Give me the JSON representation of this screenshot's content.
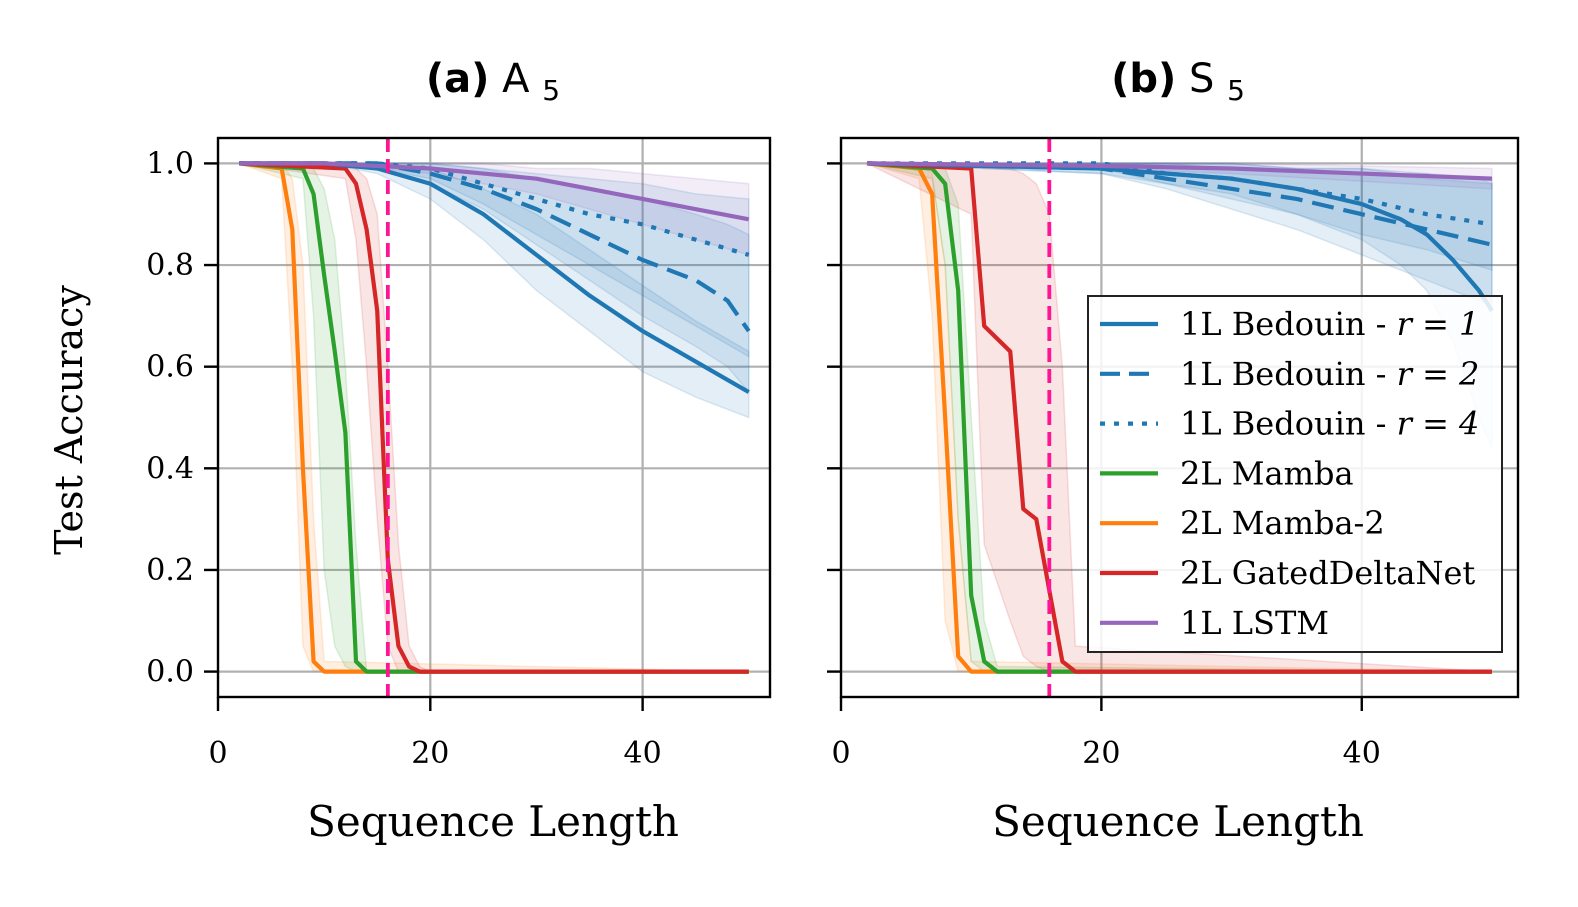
{
  "chart_data": {
    "type": "line",
    "shared_ylabel": "Test Accuracy",
    "reference_line": {
      "x": 16,
      "color": "#ff1493",
      "style": "dashed"
    },
    "legend": [
      {
        "label": "1L Bedouin - ",
        "label_math": "r = 1",
        "series_key": "bedouin_r1",
        "color": "#1f77b4",
        "dash": "solid"
      },
      {
        "label": "1L Bedouin - ",
        "label_math": "r = 2",
        "series_key": "bedouin_r2",
        "color": "#1f77b4",
        "dash": "dashed"
      },
      {
        "label": "1L Bedouin - ",
        "label_math": "r = 4",
        "series_key": "bedouin_r4",
        "color": "#1f77b4",
        "dash": "dotted"
      },
      {
        "label": "2L Mamba",
        "label_math": "",
        "series_key": "mamba",
        "color": "#2ca02c",
        "dash": "solid"
      },
      {
        "label": "2L Mamba-2",
        "label_math": "",
        "series_key": "mamba2",
        "color": "#ff7f0e",
        "dash": "solid"
      },
      {
        "label": "2L GatedDeltaNet",
        "label_math": "",
        "series_key": "gdn",
        "color": "#d62728",
        "dash": "solid"
      },
      {
        "label": "1L LSTM",
        "label_math": "",
        "series_key": "lstm",
        "color": "#9467bd",
        "dash": "solid"
      }
    ],
    "panels": [
      {
        "title_prefix": "(a)",
        "title_main": "A",
        "title_sub": "5",
        "xlabel": "Sequence Length",
        "xlim": [
          0,
          52
        ],
        "ylim": [
          -0.05,
          1.05
        ],
        "xticks": [
          0,
          20,
          40
        ],
        "yticks": [
          "0.0",
          "0.2",
          "0.4",
          "0.6",
          "0.8",
          "1.0"
        ],
        "series": [
          {
            "key": "mamba2",
            "color": "#ff7f0e",
            "dash": "solid",
            "x": [
              2,
              6,
              7,
              8,
              9,
              10,
              50
            ],
            "y": [
              1.0,
              0.99,
              0.87,
              0.4,
              0.02,
              0.0,
              0.0
            ],
            "band_upper": [
              1.0,
              1.0,
              0.97,
              0.8,
              0.3,
              0.02,
              0.0
            ],
            "band_lower": [
              1.0,
              0.97,
              0.6,
              0.05,
              0.0,
              0.0,
              0.0
            ]
          },
          {
            "key": "mamba",
            "color": "#2ca02c",
            "dash": "solid",
            "x": [
              2,
              8,
              9,
              10,
              11,
              12,
              13,
              14,
              50
            ],
            "y": [
              1.0,
              0.99,
              0.94,
              0.78,
              0.63,
              0.47,
              0.02,
              0.0,
              0.0
            ],
            "band_upper": [
              1.0,
              1.0,
              0.99,
              0.95,
              0.85,
              0.6,
              0.25,
              0.0,
              0.0
            ],
            "band_lower": [
              1.0,
              0.97,
              0.7,
              0.2,
              0.05,
              0.01,
              0.0,
              0.0,
              0.0
            ]
          },
          {
            "key": "gdn",
            "color": "#d62728",
            "dash": "solid",
            "x": [
              2,
              12,
              13,
              14,
              15,
              16,
              17,
              18,
              19,
              20,
              50
            ],
            "y": [
              1.0,
              0.99,
              0.96,
              0.87,
              0.71,
              0.22,
              0.05,
              0.01,
              0.0,
              0.0,
              0.0
            ],
            "band_upper": [
              1.0,
              1.0,
              0.99,
              0.97,
              0.9,
              0.6,
              0.25,
              0.05,
              0.01,
              0.0,
              0.0
            ],
            "band_lower": [
              1.0,
              0.97,
              0.85,
              0.6,
              0.3,
              0.05,
              0.0,
              0.0,
              0.0,
              0.0,
              0.0
            ]
          },
          {
            "key": "bedouin_r1",
            "color": "#1f77b4",
            "dash": "solid",
            "x": [
              2,
              10,
              15,
              20,
              25,
              30,
              35,
              40,
              45,
              50
            ],
            "y": [
              1.0,
              1.0,
              0.99,
              0.96,
              0.9,
              0.82,
              0.74,
              0.67,
              0.61,
              0.55
            ],
            "band_upper": [
              1.0,
              1.0,
              1.0,
              0.99,
              0.95,
              0.9,
              0.83,
              0.76,
              0.69,
              0.63
            ],
            "band_lower": [
              1.0,
              1.0,
              0.98,
              0.93,
              0.85,
              0.75,
              0.67,
              0.59,
              0.54,
              0.5
            ]
          },
          {
            "key": "bedouin_r2",
            "color": "#1f77b4",
            "dash": "dashed",
            "x": [
              2,
              15,
              20,
              25,
              30,
              35,
              40,
              45,
              48,
              50
            ],
            "y": [
              1.0,
              1.0,
              0.98,
              0.95,
              0.91,
              0.86,
              0.81,
              0.77,
              0.73,
              0.67
            ],
            "band_upper": [
              1.0,
              1.0,
              1.0,
              0.99,
              0.97,
              0.95,
              0.93,
              0.9,
              0.88,
              0.86
            ],
            "band_lower": [
              1.0,
              0.99,
              0.96,
              0.91,
              0.84,
              0.77,
              0.7,
              0.64,
              0.6,
              0.55
            ]
          },
          {
            "key": "bedouin_r4",
            "color": "#1f77b4",
            "dash": "dotted",
            "x": [
              2,
              15,
              20,
              25,
              30,
              35,
              40,
              45,
              50
            ],
            "y": [
              1.0,
              1.0,
              0.99,
              0.96,
              0.93,
              0.9,
              0.88,
              0.85,
              0.82
            ],
            "band_upper": [
              1.0,
              1.0,
              1.0,
              0.99,
              0.98,
              0.97,
              0.96,
              0.94,
              0.93
            ],
            "band_lower": [
              1.0,
              0.99,
              0.97,
              0.92,
              0.86,
              0.8,
              0.74,
              0.68,
              0.62
            ]
          },
          {
            "key": "lstm",
            "color": "#9467bd",
            "dash": "solid",
            "x": [
              2,
              10,
              20,
              25,
              30,
              35,
              40,
              45,
              50
            ],
            "y": [
              1.0,
              1.0,
              0.99,
              0.98,
              0.97,
              0.95,
              0.93,
              0.91,
              0.89
            ],
            "band_upper": [
              1.0,
              1.0,
              1.0,
              1.0,
              0.99,
              0.99,
              0.98,
              0.97,
              0.96
            ],
            "band_lower": [
              1.0,
              1.0,
              0.98,
              0.96,
              0.94,
              0.91,
              0.88,
              0.85,
              0.82
            ]
          }
        ]
      },
      {
        "title_prefix": "(b)",
        "title_main": "S",
        "title_sub": "5",
        "xlabel": "Sequence Length",
        "xlim": [
          0,
          52
        ],
        "ylim": [
          -0.05,
          1.05
        ],
        "xticks": [
          0,
          20,
          40
        ],
        "yticks": [
          "0.0",
          "0.2",
          "0.4",
          "0.6",
          "0.8",
          "1.0"
        ],
        "series": [
          {
            "key": "mamba2",
            "color": "#ff7f0e",
            "dash": "solid",
            "x": [
              2,
              6,
              7,
              8,
              9,
              10,
              50
            ],
            "y": [
              1.0,
              0.99,
              0.94,
              0.5,
              0.03,
              0.0,
              0.0
            ],
            "band_upper": [
              1.0,
              1.0,
              0.98,
              0.8,
              0.3,
              0.02,
              0.0
            ],
            "band_lower": [
              1.0,
              0.97,
              0.7,
              0.1,
              0.0,
              0.0,
              0.0
            ]
          },
          {
            "key": "mamba",
            "color": "#2ca02c",
            "dash": "solid",
            "x": [
              2,
              7,
              8,
              9,
              10,
              11,
              12,
              50
            ],
            "y": [
              1.0,
              0.99,
              0.96,
              0.75,
              0.15,
              0.02,
              0.0,
              0.0
            ],
            "band_upper": [
              1.0,
              1.0,
              0.99,
              0.92,
              0.5,
              0.1,
              0.01,
              0.0
            ],
            "band_lower": [
              1.0,
              0.97,
              0.8,
              0.3,
              0.02,
              0.0,
              0.0,
              0.0
            ]
          },
          {
            "key": "gdn",
            "color": "#d62728",
            "dash": "solid",
            "x": [
              2,
              10,
              11,
              13,
              14,
              15,
              16,
              17,
              18,
              50
            ],
            "y": [
              1.0,
              0.99,
              0.68,
              0.63,
              0.32,
              0.3,
              0.16,
              0.02,
              0.0,
              0.0
            ],
            "band_upper": [
              1.0,
              1.0,
              0.99,
              0.99,
              0.98,
              0.96,
              0.9,
              0.6,
              0.05,
              0.0
            ],
            "band_lower": [
              1.0,
              0.9,
              0.25,
              0.1,
              0.03,
              0.01,
              0.0,
              0.0,
              0.0,
              0.0
            ]
          },
          {
            "key": "bedouin_r1",
            "color": "#1f77b4",
            "dash": "solid",
            "x": [
              2,
              20,
              30,
              35,
              40,
              43,
              45,
              47,
              49,
              50
            ],
            "y": [
              1.0,
              0.99,
              0.97,
              0.95,
              0.92,
              0.89,
              0.86,
              0.81,
              0.75,
              0.71
            ],
            "band_upper": [
              1.0,
              1.0,
              1.0,
              0.99,
              0.99,
              0.98,
              0.98,
              0.97,
              0.97,
              0.96
            ],
            "band_lower": [
              1.0,
              0.98,
              0.94,
              0.9,
              0.85,
              0.8,
              0.75,
              0.65,
              0.5,
              0.44
            ]
          },
          {
            "key": "bedouin_r2",
            "color": "#1f77b4",
            "dash": "dashed",
            "x": [
              2,
              20,
              25,
              30,
              35,
              40,
              45,
              50
            ],
            "y": [
              1.0,
              0.99,
              0.97,
              0.95,
              0.93,
              0.9,
              0.87,
              0.84
            ],
            "band_upper": [
              1.0,
              1.0,
              1.0,
              0.99,
              0.99,
              0.98,
              0.97,
              0.96
            ],
            "band_lower": [
              1.0,
              0.98,
              0.95,
              0.91,
              0.87,
              0.82,
              0.77,
              0.72
            ]
          },
          {
            "key": "bedouin_r4",
            "color": "#1f77b4",
            "dash": "dotted",
            "x": [
              2,
              20,
              25,
              30,
              35,
              40,
              45,
              50
            ],
            "y": [
              1.0,
              1.0,
              0.98,
              0.97,
              0.95,
              0.93,
              0.9,
              0.88
            ],
            "band_upper": [
              1.0,
              1.0,
              1.0,
              1.0,
              0.99,
              0.99,
              0.98,
              0.97
            ],
            "band_lower": [
              1.0,
              0.99,
              0.96,
              0.93,
              0.9,
              0.86,
              0.83,
              0.79
            ]
          },
          {
            "key": "lstm",
            "color": "#9467bd",
            "dash": "solid",
            "x": [
              2,
              20,
              30,
              40,
              50
            ],
            "y": [
              1.0,
              0.995,
              0.99,
              0.98,
              0.97
            ],
            "band_upper": [
              1.0,
              1.0,
              1.0,
              0.995,
              0.99
            ],
            "band_lower": [
              1.0,
              0.99,
              0.98,
              0.965,
              0.95
            ]
          }
        ]
      }
    ]
  }
}
